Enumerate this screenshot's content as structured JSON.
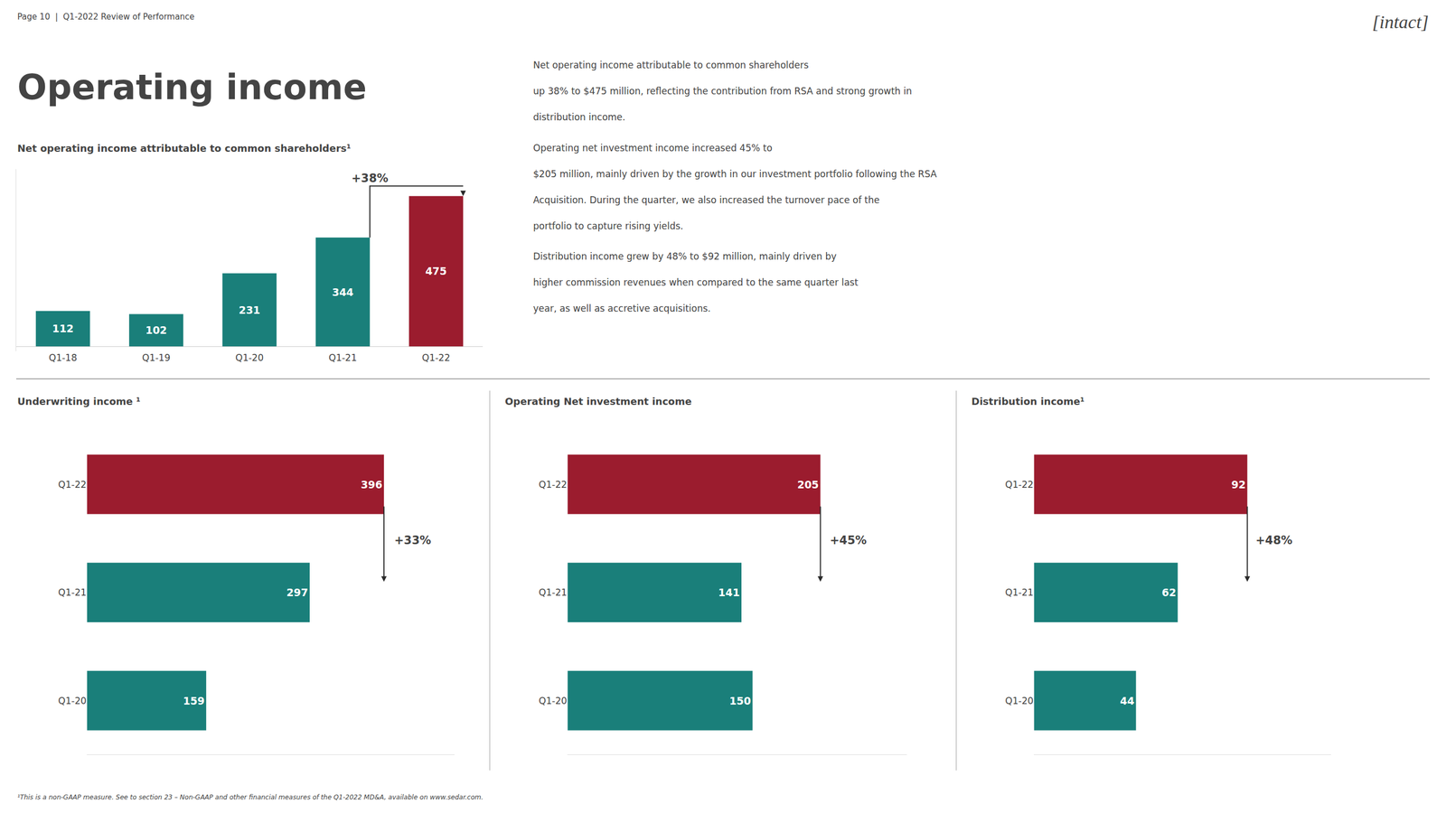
{
  "header": "Page 10  |  Q1-2022 Review of Performance",
  "logo": "[intact]",
  "title": "Operating income",
  "paragraphs": [
    [
      "Net operating income attributable to common shareholders",
      "up 38% to $475 million, reflecting the contribution from RSA and strong growth in",
      "distribution income."
    ],
    [
      "Operating net investment income increased 45% to",
      "$205 million, mainly driven by the growth in our investment portfolio following the RSA",
      "Acquisition. During the quarter, we also increased the turnover pace of the",
      "portfolio to capture rising yields."
    ],
    [
      "Distribution income grew by 48% to $92 million, mainly driven by",
      "higher commission revenues when compared to the same quarter last",
      "year, as well as accretive acquisitions."
    ]
  ],
  "footnote": "¹This is a non-GAAP measure. See to section 23 – Non-GAAP and other financial measures of the Q1-2022 MD&A, available on www.sedar.com.",
  "chart_data": [
    {
      "type": "bar",
      "title": "Net operating income attributable to common shareholders¹",
      "categories": [
        "Q1-18",
        "Q1-19",
        "Q1-20",
        "Q1-21",
        "Q1-22"
      ],
      "values": [
        112,
        102,
        231,
        344,
        475
      ],
      "colors": [
        "#1a7f7a",
        "#1a7f7a",
        "#1a7f7a",
        "#1a7f7a",
        "#9b1c2e"
      ],
      "ylim": [
        -15,
        560
      ],
      "grid": false,
      "data_labels": true,
      "tick_labels": "x",
      "annotations": [
        "+38%"
      ]
    },
    {
      "type": "bar",
      "orientation": "horizontal",
      "title": "Underwriting income ¹",
      "categories": [
        "Q1-20",
        "Q1-21",
        "Q1-22"
      ],
      "values": [
        159,
        297,
        396
      ],
      "colors": [
        "#1a7f7a",
        "#1a7f7a",
        "#9b1c2e"
      ],
      "xlim": [
        0,
        490
      ],
      "grid": false,
      "data_labels": true,
      "tick_labels": "y",
      "annotations": [
        "+33%"
      ]
    },
    {
      "type": "bar",
      "orientation": "horizontal",
      "title": "Operating Net investment income",
      "categories": [
        "Q1-20",
        "Q1-21",
        "Q1-22"
      ],
      "values": [
        150,
        141,
        205
      ],
      "colors": [
        "#1a7f7a",
        "#1a7f7a",
        "#9b1c2e"
      ],
      "xlim": [
        0,
        275
      ],
      "grid": false,
      "data_labels": true,
      "tick_labels": "y",
      "annotations": [
        "+45%"
      ]
    },
    {
      "type": "bar",
      "orientation": "horizontal",
      "title": "Distribution income¹",
      "categories": [
        "Q1-20",
        "Q1-21",
        "Q1-22"
      ],
      "values": [
        44,
        62,
        92
      ],
      "colors": [
        "#1a7f7a",
        "#1a7f7a",
        "#9b1c2e"
      ],
      "xlim": [
        0,
        128
      ],
      "grid": false,
      "data_labels": true,
      "tick_labels": "y",
      "annotations": [
        "+48%"
      ]
    }
  ]
}
